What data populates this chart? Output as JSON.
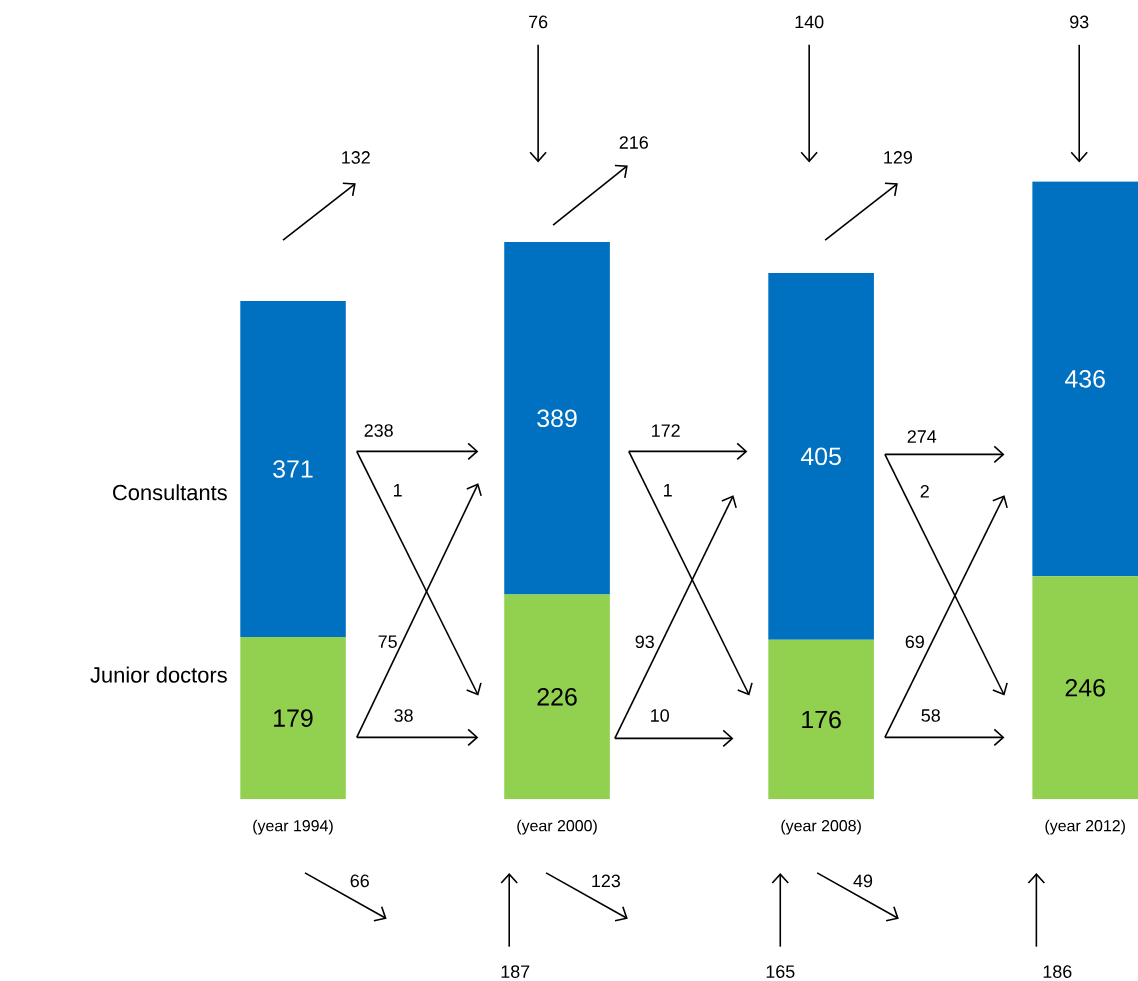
{
  "chart_data": {
    "type": "bar",
    "stacked": true,
    "data_labels": true,
    "categories": [
      "(year 1994)",
      "(year 2000)",
      "(year 2008)",
      "(year 2012)"
    ],
    "series": [
      {
        "name": "Junior doctors",
        "color": "#92d050",
        "values": [
          179,
          226,
          176,
          246
        ]
      },
      {
        "name": "Consultants",
        "color": "#0070c0",
        "values": [
          371,
          389,
          405,
          436
        ]
      }
    ],
    "annotations": [
      "132",
      "76",
      "216",
      "140",
      "129",
      "93",
      "238",
      "1",
      "75",
      "38",
      "172",
      "1",
      "93",
      "10",
      "274",
      "2",
      "69",
      "58",
      "66",
      "187",
      "123",
      "165",
      "49",
      "186"
    ]
  }
}
